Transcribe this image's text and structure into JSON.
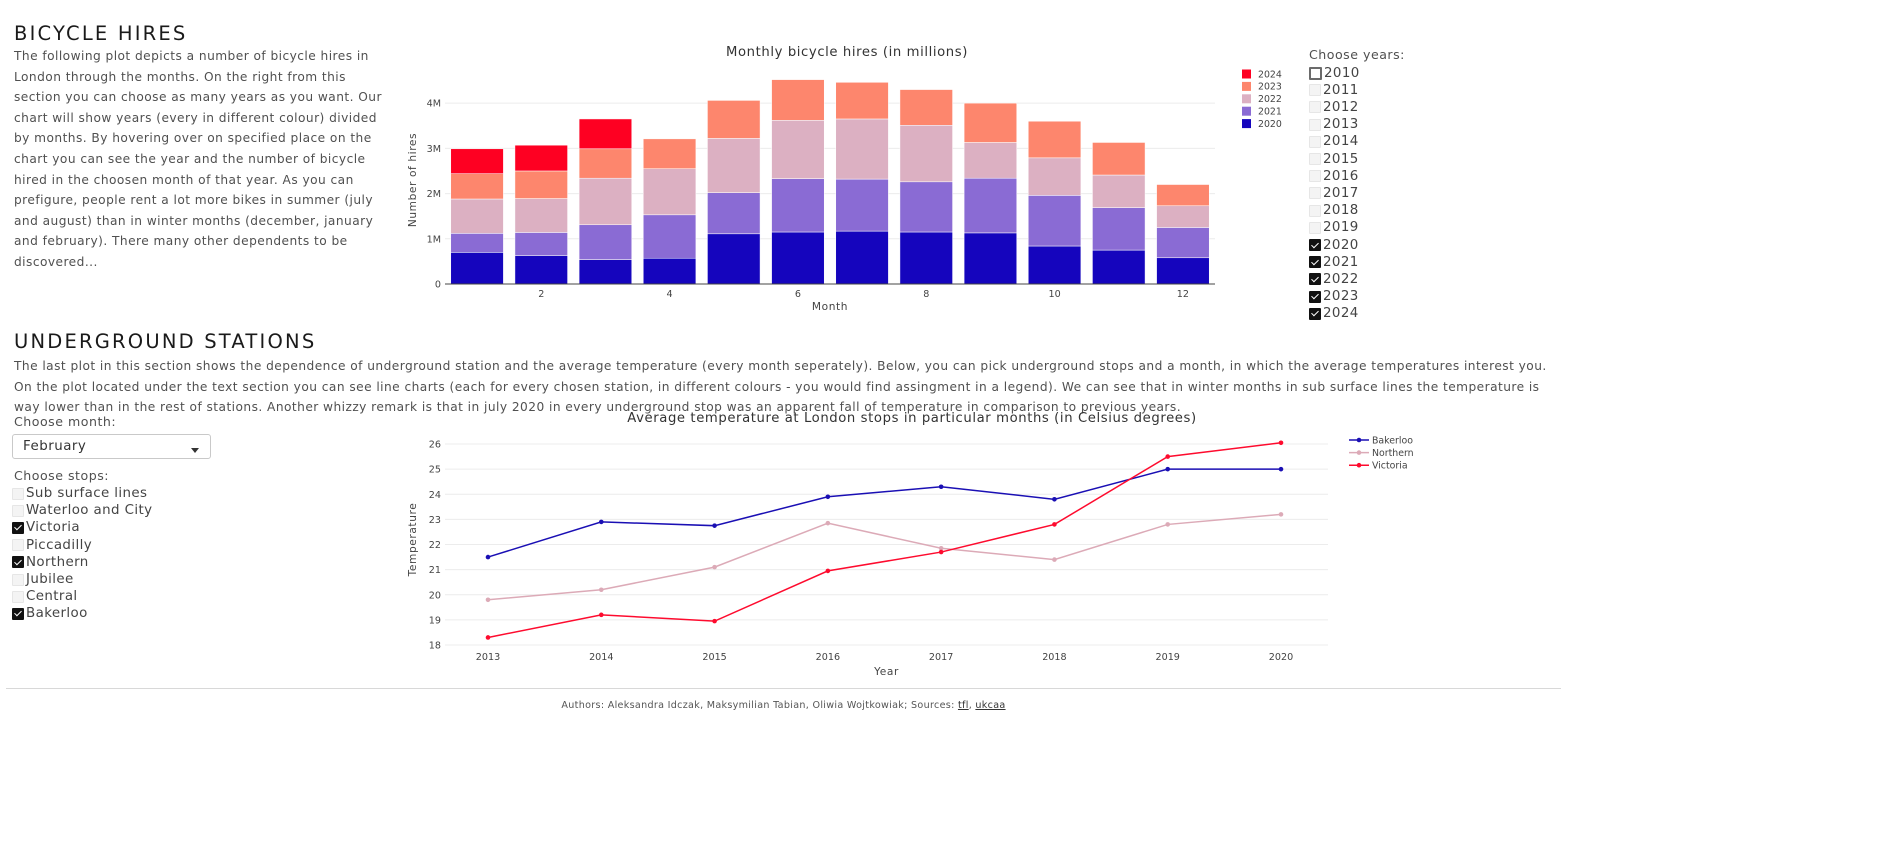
{
  "bicycle": {
    "title": "BICYCLE HIRES",
    "description": "The following plot depicts a number of bicycle hires in London through the months. On the right from this section you can choose as many years as you want. Our chart will show years (every in different colour) divided by months. By hovering over on specified place on the chart you can see the year and the number of bicycle hired in the choosen month of that year. As you can prefigure, people rent a lot more bikes in summer (july and august) than in winter months (december, january and february). There many other dependents to be discovered...",
    "years_label": "Choose years:",
    "years": [
      {
        "label": "2010",
        "checked": false
      },
      {
        "label": "2011",
        "checked": false
      },
      {
        "label": "2012",
        "checked": false
      },
      {
        "label": "2013",
        "checked": false
      },
      {
        "label": "2014",
        "checked": false
      },
      {
        "label": "2015",
        "checked": false
      },
      {
        "label": "2016",
        "checked": false
      },
      {
        "label": "2017",
        "checked": false
      },
      {
        "label": "2018",
        "checked": false
      },
      {
        "label": "2019",
        "checked": false
      },
      {
        "label": "2020",
        "checked": true
      },
      {
        "label": "2021",
        "checked": true
      },
      {
        "label": "2022",
        "checked": true
      },
      {
        "label": "2023",
        "checked": true
      },
      {
        "label": "2024",
        "checked": true
      }
    ]
  },
  "underground": {
    "title": "UNDERGROUND STATIONS",
    "description": "The last plot in this section shows the dependence of underground station and the average temperature (every month seperately). Below, you can pick underground stops and a month, in which the average temperatures interest you. On the plot located under the text section you can see line charts (each for every chosen station, in different colours - you would find assingment in a legend). We can see that in winter months in sub surface lines the temperature is way lower than in the rest of stations. Another whizzy remark is that in july 2020 in every underground stop was an apparent fall of temperature in comparison to previous years.",
    "month_label": "Choose month:",
    "month_value": "February",
    "stops_label": "Choose stops:",
    "stops": [
      {
        "label": "Sub surface lines",
        "checked": false
      },
      {
        "label": "Waterloo and City",
        "checked": false
      },
      {
        "label": "Victoria",
        "checked": true
      },
      {
        "label": "Piccadilly",
        "checked": false
      },
      {
        "label": "Northern",
        "checked": true
      },
      {
        "label": "Jubilee",
        "checked": false
      },
      {
        "label": "Central",
        "checked": false
      },
      {
        "label": "Bakerloo",
        "checked": true
      }
    ]
  },
  "footer": {
    "text": "Authors: Aleksandra Idczak, Maksymilian Tabian, Oliwia Wojtkowiak; Sources: ",
    "link1": "tfl",
    "sep": ", ",
    "link2": "ukcaa"
  },
  "chart_data": [
    {
      "type": "bar",
      "title": "Monthly bicycle hires (in millions)",
      "xlabel": "Month",
      "ylabel": "Number of hires",
      "stacked": true,
      "categories": [
        1,
        2,
        3,
        4,
        5,
        6,
        7,
        8,
        9,
        10,
        11,
        12
      ],
      "x_ticks": [
        2,
        4,
        6,
        8,
        10,
        12
      ],
      "y_ticks": [
        0,
        1000000,
        2000000,
        3000000,
        4000000
      ],
      "y_tick_labels": [
        "0",
        "1M",
        "2M",
        "3M",
        "4M"
      ],
      "ylim": [
        0,
        4600000
      ],
      "legend_position": "top-right",
      "series": [
        {
          "name": "2020",
          "color": "#1505bd",
          "values": [
            700000,
            630000,
            540000,
            570000,
            1110000,
            1150000,
            1170000,
            1150000,
            1130000,
            840000,
            750000,
            580000
          ]
        },
        {
          "name": "2021",
          "color": "#8a6bd4",
          "values": [
            420000,
            510000,
            770000,
            960000,
            910000,
            1180000,
            1150000,
            1110000,
            1210000,
            1120000,
            940000,
            670000
          ]
        },
        {
          "name": "2022",
          "color": "#dcb0c2",
          "values": [
            760000,
            750000,
            1030000,
            1020000,
            1200000,
            1290000,
            1330000,
            1250000,
            790000,
            830000,
            720000,
            480000
          ]
        },
        {
          "name": "2023",
          "color": "#fd866d",
          "values": [
            560000,
            610000,
            650000,
            660000,
            840000,
            900000,
            810000,
            790000,
            870000,
            810000,
            720000,
            470000
          ]
        },
        {
          "name": "2024",
          "color": "#fe0022",
          "values": [
            550000,
            570000,
            660000,
            0,
            0,
            0,
            0,
            0,
            0,
            0,
            0,
            0
          ]
        }
      ]
    },
    {
      "type": "line",
      "title": "Average temperature at London stops in particular months (in Celsius degrees)",
      "xlabel": "Year",
      "ylabel": "Temperature",
      "x": [
        2013,
        2014,
        2015,
        2016,
        2017,
        2018,
        2019,
        2020
      ],
      "y_ticks": [
        18,
        19,
        20,
        21,
        22,
        23,
        24,
        25,
        26
      ],
      "ylim": [
        18,
        26.4
      ],
      "legend_position": "top-right",
      "series": [
        {
          "name": "Bakerloo",
          "color": "#1a0fb4",
          "values": [
            21.5,
            22.9,
            22.75,
            23.9,
            24.3,
            23.8,
            25.0,
            25.0
          ]
        },
        {
          "name": "Northern",
          "color": "#dcaab7",
          "values": [
            19.8,
            20.2,
            21.1,
            22.85,
            21.85,
            21.4,
            22.8,
            23.2
          ]
        },
        {
          "name": "Victoria",
          "color": "#fe0b2e",
          "values": [
            18.3,
            19.2,
            18.95,
            20.95,
            21.7,
            22.8,
            25.5,
            26.05
          ]
        }
      ]
    }
  ]
}
